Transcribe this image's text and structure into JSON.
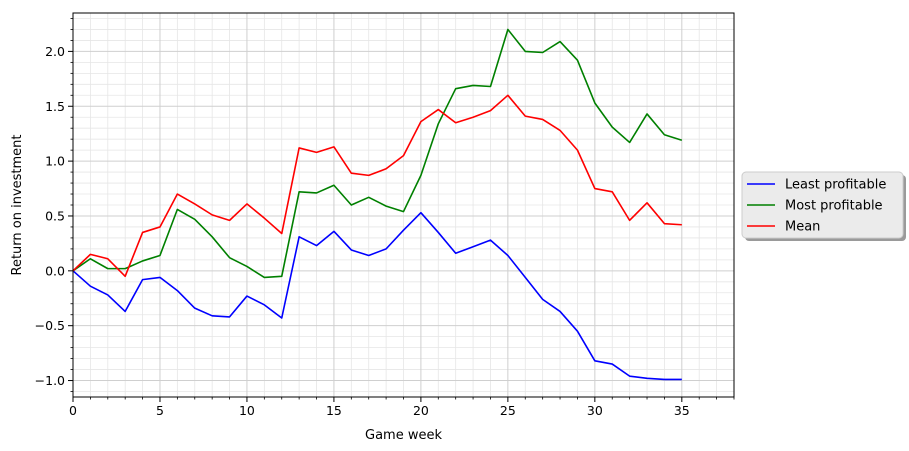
{
  "chart_data": {
    "type": "line",
    "xlabel": "Game week",
    "ylabel": "Return on investment",
    "xlim": [
      0,
      38
    ],
    "ylim": [
      -1.15,
      2.35
    ],
    "x_major_ticks": [
      0,
      5,
      10,
      15,
      20,
      25,
      30,
      35
    ],
    "x_tick_labels": [
      "0",
      "5",
      "10",
      "15",
      "20",
      "25",
      "30",
      "35"
    ],
    "y_major_ticks": [
      -1.0,
      -0.5,
      0.0,
      0.5,
      1.0,
      1.5,
      2.0
    ],
    "y_tick_labels": [
      "−1.0",
      "−0.5",
      "0.0",
      "0.5",
      "1.0",
      "1.5",
      "2.0"
    ],
    "grid": true,
    "minor_grid": true,
    "legend_position": "right, outside plot, centered",
    "x": [
      0,
      1,
      2,
      3,
      4,
      5,
      6,
      7,
      8,
      9,
      10,
      11,
      12,
      13,
      14,
      15,
      16,
      17,
      18,
      19,
      20,
      21,
      22,
      23,
      24,
      25,
      26,
      27,
      28,
      29,
      30,
      31,
      32,
      33,
      34,
      35
    ],
    "series": [
      {
        "name": "Least profitable",
        "color": "#0000ff",
        "values": [
          0.0,
          -0.14,
          -0.22,
          -0.37,
          -0.08,
          -0.06,
          -0.18,
          -0.34,
          -0.41,
          -0.42,
          -0.23,
          -0.31,
          -0.43,
          0.31,
          0.23,
          0.36,
          0.19,
          0.14,
          0.2,
          0.37,
          0.53,
          0.35,
          0.16,
          0.22,
          0.28,
          0.14,
          -0.06,
          -0.26,
          -0.37,
          -0.55,
          -0.82,
          -0.85,
          -0.96,
          -0.98,
          -0.99,
          -0.99
        ]
      },
      {
        "name": "Most profitable",
        "color": "#008000",
        "values": [
          0.0,
          0.11,
          0.02,
          0.02,
          0.09,
          0.14,
          0.56,
          0.47,
          0.31,
          0.12,
          0.04,
          -0.06,
          -0.05,
          0.72,
          0.71,
          0.78,
          0.6,
          0.67,
          0.59,
          0.54,
          0.87,
          1.34,
          1.66,
          1.69,
          1.68,
          2.2,
          2.0,
          1.99,
          2.09,
          1.92,
          1.53,
          1.31,
          1.17,
          1.43,
          1.24,
          1.19
        ]
      },
      {
        "name": "Mean",
        "color": "#ff0000",
        "values": [
          0.0,
          0.15,
          0.11,
          -0.05,
          0.35,
          0.4,
          0.7,
          0.61,
          0.51,
          0.46,
          0.61,
          0.48,
          0.34,
          1.12,
          1.08,
          1.13,
          0.89,
          0.87,
          0.93,
          1.05,
          1.36,
          1.47,
          1.35,
          1.4,
          1.46,
          1.6,
          1.41,
          1.38,
          1.28,
          1.1,
          0.75,
          0.72,
          0.46,
          0.62,
          0.43,
          0.42
        ]
      }
    ]
  }
}
